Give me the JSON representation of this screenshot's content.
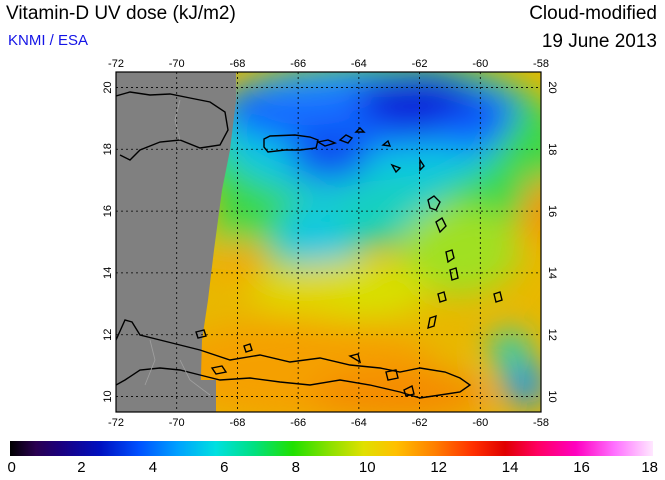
{
  "header": {
    "title": "Vitamin-D UV dose (kJ/m2)",
    "subtitle": "KNMI / ESA",
    "mode": "Cloud-modified",
    "date": "19 June 2013"
  },
  "colors": {
    "subtitle": "#1414e6",
    "land_nodata": "#808080",
    "grid": "#000000"
  },
  "map": {
    "lon_range": [
      -72,
      -58
    ],
    "lat_range": [
      9.5,
      20.5
    ],
    "lon_ticks_top": [
      "-72",
      "-70",
      "-68",
      "-66",
      "-64",
      "-62",
      "-60",
      "-58"
    ],
    "lon_ticks_bottom": [
      "-72",
      "-70",
      "-68",
      "-66",
      "-64",
      "-62",
      "-60",
      "-58"
    ],
    "lat_ticks_left": [
      "10",
      "12",
      "14",
      "16",
      "18",
      "20"
    ],
    "lat_ticks_right": [
      "10",
      "12",
      "14",
      "16",
      "18",
      "20"
    ],
    "grid": true
  },
  "colorbar": {
    "labels": [
      "0",
      "2",
      "4",
      "6",
      "8",
      "10",
      "12",
      "14",
      "16",
      "18"
    ],
    "range": [
      0,
      18
    ]
  }
}
